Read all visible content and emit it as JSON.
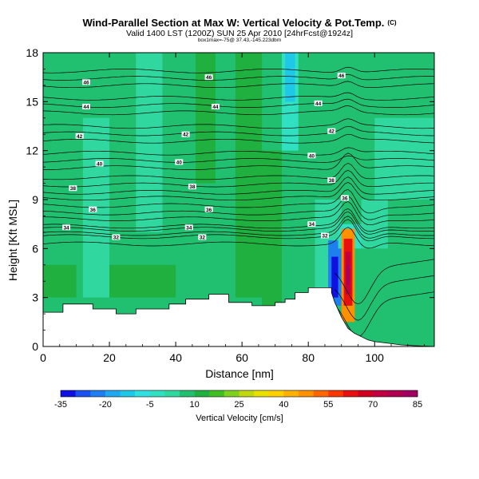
{
  "title": "Wind-Parallel Section at Max W: Vertical Velocity & Pot.Temp.",
  "title_mark": "(C)",
  "subtitle": "Valid 1400 LST (1200Z) SUN 25 Apr 2010 [24hrFcst@1924z]",
  "sub_subtitle": "box1max=-75@ 37.43,-145.223dbm",
  "chart_data": {
    "type": "cross-section-contour",
    "xlabel": "Distance [nm]",
    "ylabel": "Height [Kft MSL]",
    "xlim": [
      0,
      118
    ],
    "ylim": [
      0,
      18
    ],
    "x_ticks": [
      0,
      20,
      40,
      60,
      80,
      100
    ],
    "y_ticks": [
      0,
      3,
      6,
      9,
      12,
      15,
      18
    ],
    "terrain": {
      "x": [
        0,
        6,
        6,
        15,
        15,
        22,
        22,
        28,
        28,
        38,
        38,
        43,
        43,
        50,
        50,
        56,
        56,
        63,
        63,
        70,
        70,
        73,
        73,
        76,
        76,
        80,
        80,
        83,
        83,
        87,
        87,
        88,
        90,
        92,
        94,
        96,
        98,
        100,
        104,
        108,
        112,
        118
      ],
      "y": [
        2.1,
        2.1,
        2.6,
        2.6,
        2.3,
        2.3,
        2.0,
        2.0,
        2.3,
        2.3,
        2.6,
        2.6,
        2.9,
        2.9,
        3.2,
        3.2,
        2.7,
        2.7,
        2.5,
        2.5,
        2.7,
        2.7,
        2.9,
        2.9,
        3.3,
        3.3,
        3.6,
        3.6,
        3.6,
        3.6,
        3.3,
        2.7,
        1.8,
        1.1,
        0.8,
        0.6,
        0.4,
        0.3,
        0.2,
        0.1,
        0.05,
        0
      ]
    },
    "velocity_cells": [
      {
        "x0": 0,
        "x1": 118,
        "y0": 0,
        "y1": 18,
        "value": 5
      },
      {
        "x0": 12,
        "x1": 20,
        "y0": 3,
        "y1": 14,
        "value": 0
      },
      {
        "x0": 28,
        "x1": 36,
        "y0": 7,
        "y1": 18,
        "value": 0
      },
      {
        "x0": 46,
        "x1": 52,
        "y0": 10,
        "y1": 18,
        "value": 10
      },
      {
        "x0": 58,
        "x1": 66,
        "y0": 3,
        "y1": 18,
        "value": 10
      },
      {
        "x0": 66,
        "x1": 72,
        "y0": 2.5,
        "y1": 12,
        "value": 10
      },
      {
        "x0": 72,
        "x1": 77,
        "y0": 12,
        "y1": 18,
        "value": -5
      },
      {
        "x0": 73,
        "x1": 76,
        "y0": 15,
        "y1": 18,
        "value": -12
      },
      {
        "x0": 82,
        "x1": 90,
        "y0": 3,
        "y1": 9,
        "value": 0
      },
      {
        "x0": 0,
        "x1": 10,
        "y0": 3,
        "y1": 5,
        "value": 10
      },
      {
        "x0": 20,
        "x1": 40,
        "y0": 3,
        "y1": 5,
        "value": 10
      },
      {
        "x0": 96,
        "x1": 104,
        "y0": 6,
        "y1": 9,
        "value": 0
      },
      {
        "x0": 100,
        "x1": 118,
        "y0": 9,
        "y1": 14,
        "value": 0
      },
      {
        "x0": 86,
        "x1": 90,
        "y0": 2.5,
        "y1": 6.5,
        "value": -25
      },
      {
        "x0": 87,
        "x1": 89,
        "y0": 3,
        "y1": 5.5,
        "value": -35
      },
      {
        "x0": 89,
        "x1": 96,
        "y0": 6,
        "y1": 7.5,
        "value": -5
      },
      {
        "x0": 90,
        "x1": 94,
        "y0": 1.5,
        "y1": 7.2,
        "value": 45
      },
      {
        "x0": 90.7,
        "x1": 93.3,
        "y0": 2.5,
        "y1": 6.6,
        "value": 60
      },
      {
        "x0": 91.2,
        "x1": 92.8,
        "y0": 3.2,
        "y1": 5.8,
        "value": 72
      },
      {
        "x0": 91.6,
        "x1": 92.4,
        "y0": 3.8,
        "y1": 5.0,
        "value": 80
      }
    ],
    "contour_labels": [
      {
        "x": 13,
        "y": 16.2,
        "label": "46"
      },
      {
        "x": 50,
        "y": 16.5,
        "label": "46"
      },
      {
        "x": 90,
        "y": 16.6,
        "label": "46"
      },
      {
        "x": 13,
        "y": 14.7,
        "label": "44"
      },
      {
        "x": 52,
        "y": 14.7,
        "label": "44"
      },
      {
        "x": 83,
        "y": 14.9,
        "label": "44"
      },
      {
        "x": 11,
        "y": 12.9,
        "label": "42"
      },
      {
        "x": 43,
        "y": 13.0,
        "label": "42"
      },
      {
        "x": 87,
        "y": 13.2,
        "label": "42"
      },
      {
        "x": 17,
        "y": 11.2,
        "label": "40"
      },
      {
        "x": 41,
        "y": 11.3,
        "label": "40"
      },
      {
        "x": 81,
        "y": 11.7,
        "label": "40"
      },
      {
        "x": 9,
        "y": 9.7,
        "label": "38"
      },
      {
        "x": 45,
        "y": 9.8,
        "label": "38"
      },
      {
        "x": 87,
        "y": 10.2,
        "label": "38"
      },
      {
        "x": 15,
        "y": 8.4,
        "label": "36"
      },
      {
        "x": 50,
        "y": 8.4,
        "label": "36"
      },
      {
        "x": 91,
        "y": 9.1,
        "label": "36"
      },
      {
        "x": 7,
        "y": 7.3,
        "label": "34"
      },
      {
        "x": 44,
        "y": 7.3,
        "label": "34"
      },
      {
        "x": 81,
        "y": 7.5,
        "label": "34"
      },
      {
        "x": 22,
        "y": 6.7,
        "label": "32"
      },
      {
        "x": 48,
        "y": 6.7,
        "label": "32"
      },
      {
        "x": 85,
        "y": 6.8,
        "label": "32"
      }
    ],
    "colorbar": {
      "title": "Vertical Velocity [cm/s]",
      "tick_labels": [
        "-35",
        "-20",
        "-5",
        "10",
        "25",
        "40",
        "55",
        "70",
        "85"
      ],
      "bins": [
        -35,
        -30,
        -25,
        -20,
        -15,
        -10,
        -5,
        0,
        5,
        10,
        15,
        20,
        25,
        30,
        35,
        40,
        45,
        50,
        55,
        60,
        65,
        70,
        75,
        80,
        85
      ],
      "colors": [
        "#1010e0",
        "#1c50f0",
        "#1e80f0",
        "#20a8f0",
        "#20c8e8",
        "#30e0e0",
        "#30e0c0",
        "#30d8a0",
        "#20c070",
        "#20b040",
        "#40c020",
        "#80d020",
        "#c0d810",
        "#e8e000",
        "#ffd000",
        "#ffb000",
        "#ff9000",
        "#ff6800",
        "#f83800",
        "#e81010",
        "#d00020",
        "#c00040",
        "#b00050",
        "#a00060"
      ]
    }
  }
}
